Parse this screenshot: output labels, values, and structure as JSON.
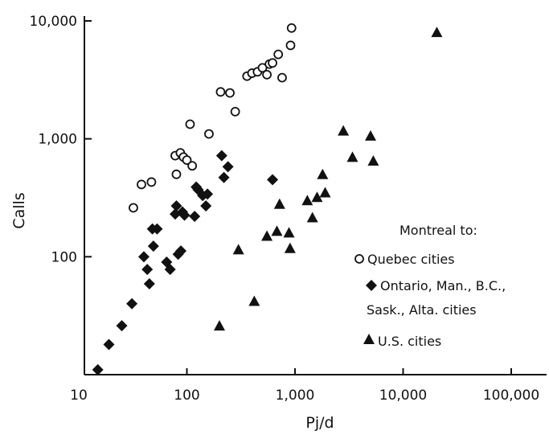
{
  "chart_data": {
    "type": "scatter",
    "xlabel": "Pj/d",
    "ylabel": "Calls",
    "xscale": "log",
    "yscale": "log",
    "xlim": [
      10,
      100000
    ],
    "ylim": [
      10,
      10000
    ],
    "x_ticks": [
      10,
      100,
      1000,
      10000,
      100000
    ],
    "x_tick_labels": [
      "10",
      "100",
      "1,000",
      "10,000",
      "100,000"
    ],
    "y_ticks": [
      100,
      1000,
      10000
    ],
    "y_tick_labels": [
      "100",
      "1,000",
      "10,000"
    ],
    "grid": false,
    "legend": {
      "title": "Montreal to:",
      "placement": "right",
      "entries": [
        "Quebec cities",
        "Ontario, Man., B.C.,",
        "Sask., Alta. cities",
        "U.S. cities"
      ]
    },
    "series": [
      {
        "name": "Quebec cities",
        "marker": "open-circle",
        "points": [
          [
            32,
            260
          ],
          [
            38,
            410
          ],
          [
            47,
            430
          ],
          [
            78,
            720
          ],
          [
            80,
            500
          ],
          [
            87,
            760
          ],
          [
            93,
            700
          ],
          [
            100,
            660
          ],
          [
            107,
            1330
          ],
          [
            112,
            590
          ],
          [
            160,
            1100
          ],
          [
            205,
            2500
          ],
          [
            250,
            2450
          ],
          [
            280,
            1700
          ],
          [
            360,
            3400
          ],
          [
            400,
            3600
          ],
          [
            450,
            3700
          ],
          [
            500,
            4000
          ],
          [
            550,
            3500
          ],
          [
            580,
            4300
          ],
          [
            620,
            4400
          ],
          [
            700,
            5200
          ],
          [
            760,
            3300
          ],
          [
            910,
            6200
          ],
          [
            930,
            8700
          ]
        ]
      },
      {
        "name": "Ontario, Man., B.C., Sask., Alta. cities",
        "marker": "filled-diamond",
        "points": [
          [
            15,
            11
          ],
          [
            19,
            18
          ],
          [
            25,
            26
          ],
          [
            31,
            40
          ],
          [
            40,
            100
          ],
          [
            43,
            78
          ],
          [
            45,
            59
          ],
          [
            48,
            172
          ],
          [
            49,
            123
          ],
          [
            53,
            172
          ],
          [
            65,
            90
          ],
          [
            70,
            78
          ],
          [
            78,
            230
          ],
          [
            80,
            270
          ],
          [
            83,
            105
          ],
          [
            88,
            112
          ],
          [
            91,
            240
          ],
          [
            95,
            225
          ],
          [
            118,
            220
          ],
          [
            122,
            390
          ],
          [
            127,
            370
          ],
          [
            140,
            330
          ],
          [
            150,
            270
          ],
          [
            155,
            340
          ],
          [
            210,
            720
          ],
          [
            220,
            470
          ],
          [
            240,
            580
          ],
          [
            620,
            450
          ]
        ]
      },
      {
        "name": "U.S. cities",
        "marker": "filled-triangle",
        "points": [
          [
            200,
            26
          ],
          [
            300,
            115
          ],
          [
            420,
            42
          ],
          [
            550,
            150
          ],
          [
            680,
            165
          ],
          [
            720,
            280
          ],
          [
            880,
            160
          ],
          [
            900,
            118
          ],
          [
            1300,
            300
          ],
          [
            1450,
            215
          ],
          [
            1600,
            320
          ],
          [
            1800,
            500
          ],
          [
            1900,
            350
          ],
          [
            2800,
            1170
          ],
          [
            3400,
            700
          ],
          [
            5000,
            1060
          ],
          [
            5300,
            650
          ],
          [
            20500,
            8000
          ]
        ]
      }
    ]
  }
}
